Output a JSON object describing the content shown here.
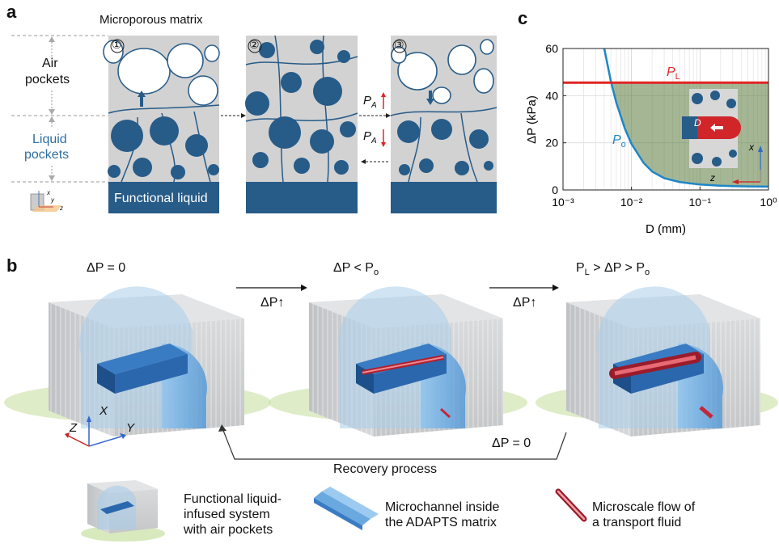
{
  "panels": {
    "a": "a",
    "b": "b",
    "c": "c"
  },
  "panel_a": {
    "title": "Microporous matrix",
    "air_label_1": "Air",
    "air_label_2": "pockets",
    "liquid_label_1": "Liquid",
    "liquid_label_2": "pockets",
    "functional_liquid": "Functional liquid",
    "step_markers": [
      "①",
      "②",
      "③"
    ],
    "pa_symbol": "P",
    "pa_sub": "A",
    "axis_letters": [
      "x",
      "y",
      "z"
    ]
  },
  "panel_b": {
    "state_1": "ΔP = 0",
    "state_2_a": "ΔP < P",
    "state_2_sub": "o",
    "state_3_a": "P",
    "state_3_sub1": "L",
    "state_3_b": " > ΔP > P",
    "state_3_sub2": "o",
    "arrow_label": "ΔP",
    "recovery_dp": "ΔP = 0",
    "recovery_label": "Recovery process",
    "axes": {
      "x": "X",
      "y": "Y",
      "z": "Z"
    }
  },
  "legend": {
    "item_1": [
      "Functional liquid-",
      "infused system",
      "with air pockets"
    ],
    "item_2": [
      "Microchannel inside",
      "the ADAPTS matrix"
    ],
    "item_3": [
      "Microscale flow of",
      "a transport fluid"
    ]
  },
  "colors": {
    "liquid": "#275b88",
    "matrix": "#d2d2d2",
    "red": "#e02424",
    "blue_line": "#1f86c8",
    "fill_green": "#5b7a3c"
  },
  "chart_data": {
    "type": "line",
    "xlabel": "D (mm)",
    "ylabel": "ΔP (kPa)",
    "xscale": "log",
    "xlim": [
      0.001,
      1
    ],
    "ylim": [
      0,
      60
    ],
    "xticks": [
      "10⁻³",
      "10⁻²",
      "10⁻¹",
      "10⁰"
    ],
    "yticks": [
      0,
      20,
      40,
      60
    ],
    "series": [
      {
        "name": "P_L",
        "label_main": "P",
        "label_sub": "L",
        "x": [
          0.001,
          1
        ],
        "y": [
          45.5,
          45.5
        ],
        "color": "#e02424"
      },
      {
        "name": "P_o",
        "label_main": "P",
        "label_sub": "o",
        "x": [
          0.004,
          0.005,
          0.006,
          0.008,
          0.01,
          0.015,
          0.02,
          0.03,
          0.05,
          0.07,
          0.1,
          0.2,
          0.3,
          0.5,
          1.0
        ],
        "y": [
          60,
          46,
          37,
          26,
          19.5,
          11.5,
          7.8,
          5.0,
          3.4,
          2.8,
          2.3,
          1.8,
          1.6,
          1.5,
          1.4
        ],
        "color": "#1f86c8"
      }
    ],
    "shaded_region": "between P_o and P_L",
    "grid": true,
    "inset_labels": {
      "D": "D",
      "x": "x",
      "z": "z"
    }
  }
}
